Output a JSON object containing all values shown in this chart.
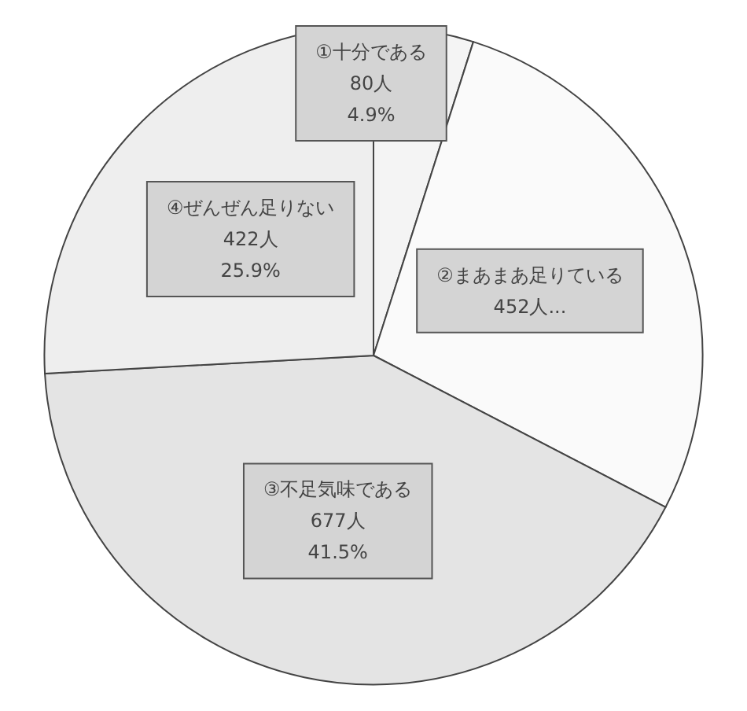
{
  "chart_data": {
    "type": "pie",
    "categories": [
      "①十分である",
      "②まあまあ足りている",
      "③不足気味である",
      "④ぜんぜん足りない"
    ],
    "values": [
      80,
      452,
      677,
      422
    ],
    "value_labels": [
      "80人\n4.9%",
      "452人...",
      "677人\n41.5%",
      "422人\n25.9%"
    ],
    "colors": [
      "#f4f4f4",
      "#fafafa",
      "#e4e4e4",
      "#eeeeee"
    ],
    "legend": false
  }
}
